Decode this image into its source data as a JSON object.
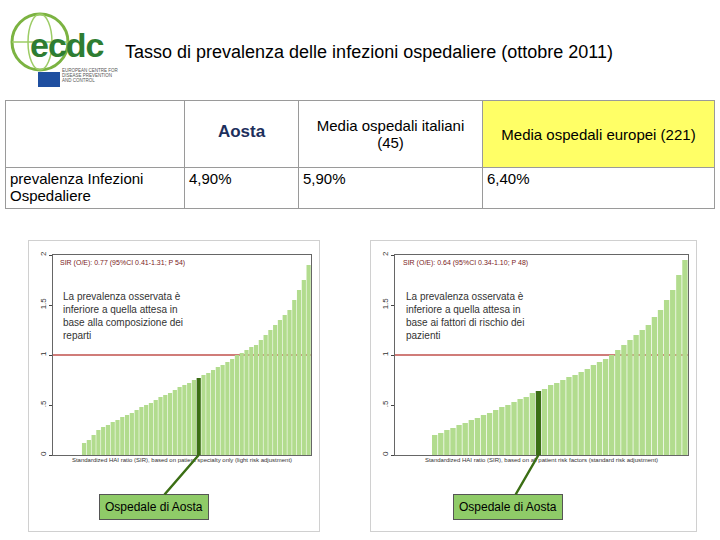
{
  "logo": {
    "text": "ecdc",
    "subtitle": "EUROPEAN CENTRE FOR DISEASE PREVENTION AND CONTROL"
  },
  "title": "Tasso di prevalenza delle infezioni ospedaliere (ottobre 2011)",
  "table": {
    "columns": [
      "Aosta",
      "Media ospedali italiani (45)",
      "Media ospedali europei (221)"
    ],
    "rows": [
      {
        "label": "prevalenza Infezioni Ospedaliere",
        "values": [
          "4,90%",
          "5,90%",
          "6,40%"
        ]
      }
    ]
  },
  "chart_data": [
    {
      "type": "bar",
      "annotations": [
        "SIR (O/E): 0.77 (95%CI 0.41-1.31; P 54)"
      ],
      "note": [
        "La prevalenza osservata è",
        "inferiore a quella attesa in",
        "base alla composizione dei",
        "reparti"
      ],
      "x_label": "Standardized HAI ratio (SIR), based on patient specialty only (light risk adjustment)",
      "callout": "Ospedale di Aosta",
      "categories": [
        null,
        null,
        null,
        null,
        null,
        null,
        null,
        null,
        null,
        null,
        null,
        null,
        null,
        null,
        null,
        null,
        null,
        null,
        null,
        null,
        null,
        null,
        null,
        null,
        null,
        null,
        null,
        null,
        null,
        null,
        null,
        null,
        null,
        null,
        null,
        null,
        null,
        null,
        null,
        null,
        null,
        null,
        null,
        null,
        null,
        null,
        null,
        null,
        null,
        null,
        null,
        null,
        null,
        null
      ],
      "values": [
        0,
        0,
        0,
        0,
        0,
        0,
        0.12,
        0.15,
        0.2,
        0.25,
        0.28,
        0.3,
        0.33,
        0.35,
        0.38,
        0.4,
        0.42,
        0.45,
        0.48,
        0.5,
        0.52,
        0.55,
        0.58,
        0.6,
        0.62,
        0.65,
        0.68,
        0.7,
        0.72,
        0.75,
        0.77,
        0.8,
        0.82,
        0.85,
        0.88,
        0.9,
        0.93,
        0.96,
        1.0,
        1.02,
        1.05,
        1.08,
        1.1,
        1.15,
        1.2,
        1.25,
        1.3,
        1.35,
        1.4,
        1.45,
        1.55,
        1.65,
        1.75,
        1.9
      ],
      "colors": [
        "#b2dc8e",
        "#b2dc8e",
        "#b2dc8e",
        "#b2dc8e",
        "#b2dc8e",
        "#b2dc8e",
        "#b2dc8e",
        "#b2dc8e",
        "#b2dc8e",
        "#b2dc8e",
        "#b2dc8e",
        "#b2dc8e",
        "#b2dc8e",
        "#b2dc8e",
        "#b2dc8e",
        "#b2dc8e",
        "#b2dc8e",
        "#b2dc8e",
        "#b2dc8e",
        "#b2dc8e",
        "#b2dc8e",
        "#b2dc8e",
        "#b2dc8e",
        "#b2dc8e",
        "#b2dc8e",
        "#b2dc8e",
        "#b2dc8e",
        "#b2dc8e",
        "#b2dc8e",
        "#b2dc8e",
        "#3b6e14",
        "#b2dc8e",
        "#b2dc8e",
        "#b2dc8e",
        "#b2dc8e",
        "#b2dc8e",
        "#b2dc8e",
        "#b2dc8e",
        "#b2dc8e",
        "#b2dc8e",
        "#b2dc8e",
        "#b2dc8e",
        "#b2dc8e",
        "#b2dc8e",
        "#b2dc8e",
        "#b2dc8e",
        "#b2dc8e",
        "#b2dc8e",
        "#b2dc8e",
        "#b2dc8e",
        "#b2dc8e",
        "#b2dc8e",
        "#b2dc8e",
        "#b2dc8e"
      ],
      "reference_line": {
        "value": 1,
        "color": "#c0504d"
      },
      "ylim": [
        0,
        2
      ],
      "yticks": [
        0,
        {
          "value": 0.5,
          "label": ".5"
        },
        1,
        1.5,
        2
      ],
      "grid": false,
      "tick_labels": "y"
    },
    {
      "type": "bar",
      "annotations": [
        "SIR (O/E): 0.64 (95%CI 0.34-1.10; P 48)"
      ],
      "note": [
        "La prevalenza osservata è",
        "inferiore a quella attesa in",
        "base ai fattori di rischio dei",
        "pazienti"
      ],
      "x_label": "Standardized HAI ratio (SIR), based on all patient risk factors (standard risk adjustment)",
      "callout": "Ospedale di Aosta",
      "categories": [
        null,
        null,
        null,
        null,
        null,
        null,
        null,
        null,
        null,
        null,
        null,
        null,
        null,
        null,
        null,
        null,
        null,
        null,
        null,
        null,
        null,
        null,
        null,
        null,
        null,
        null,
        null,
        null,
        null,
        null,
        null,
        null,
        null,
        null,
        null,
        null,
        null,
        null,
        null,
        null,
        null,
        null,
        null,
        null,
        null,
        null,
        null,
        null
      ],
      "values": [
        0,
        0,
        0,
        0,
        0,
        0,
        0.2,
        0.22,
        0.25,
        0.27,
        0.3,
        0.32,
        0.35,
        0.37,
        0.4,
        0.42,
        0.45,
        0.48,
        0.5,
        0.53,
        0.56,
        0.58,
        0.62,
        0.64,
        0.66,
        0.7,
        0.72,
        0.75,
        0.78,
        0.8,
        0.83,
        0.86,
        0.9,
        0.93,
        0.96,
        1.0,
        1.05,
        1.1,
        1.15,
        1.2,
        1.25,
        1.3,
        1.38,
        1.45,
        1.55,
        1.65,
        1.8,
        1.95
      ],
      "colors": [
        "#b2dc8e",
        "#b2dc8e",
        "#b2dc8e",
        "#b2dc8e",
        "#b2dc8e",
        "#b2dc8e",
        "#b2dc8e",
        "#b2dc8e",
        "#b2dc8e",
        "#b2dc8e",
        "#b2dc8e",
        "#b2dc8e",
        "#b2dc8e",
        "#b2dc8e",
        "#b2dc8e",
        "#b2dc8e",
        "#b2dc8e",
        "#b2dc8e",
        "#b2dc8e",
        "#b2dc8e",
        "#b2dc8e",
        "#b2dc8e",
        "#b2dc8e",
        "#3b6e14",
        "#b2dc8e",
        "#b2dc8e",
        "#b2dc8e",
        "#b2dc8e",
        "#b2dc8e",
        "#b2dc8e",
        "#b2dc8e",
        "#b2dc8e",
        "#b2dc8e",
        "#b2dc8e",
        "#b2dc8e",
        "#b2dc8e",
        "#b2dc8e",
        "#b2dc8e",
        "#b2dc8e",
        "#b2dc8e",
        "#b2dc8e",
        "#b2dc8e",
        "#b2dc8e",
        "#b2dc8e",
        "#b2dc8e",
        "#b2dc8e",
        "#b2dc8e",
        "#b2dc8e"
      ],
      "reference_line": {
        "value": 1,
        "color": "#c0504d"
      },
      "ylim": [
        0,
        2
      ],
      "yticks": [
        0,
        {
          "value": 0.5,
          "label": ".5"
        },
        1,
        1.5,
        2
      ],
      "grid": false,
      "tick_labels": "y"
    }
  ]
}
